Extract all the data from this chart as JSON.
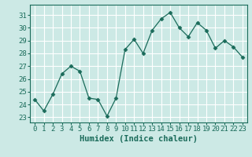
{
  "x": [
    0,
    1,
    2,
    3,
    4,
    5,
    6,
    7,
    8,
    9,
    10,
    11,
    12,
    13,
    14,
    15,
    16,
    17,
    18,
    19,
    20,
    21,
    22,
    23
  ],
  "y": [
    24.4,
    23.5,
    24.8,
    26.4,
    27.0,
    26.6,
    24.5,
    24.4,
    23.1,
    24.5,
    28.3,
    29.1,
    28.0,
    29.8,
    30.7,
    31.2,
    30.0,
    29.3,
    30.4,
    29.8,
    28.4,
    29.0,
    28.5,
    27.7
  ],
  "xlabel": "Humidex (Indice chaleur)",
  "ylim": [
    22.6,
    31.8
  ],
  "yticks": [
    23,
    24,
    25,
    26,
    27,
    28,
    29,
    30,
    31
  ],
  "xlim": [
    -0.5,
    23.5
  ],
  "line_color": "#1a6b5a",
  "marker": "D",
  "marker_size": 2.5,
  "bg_color": "#cce9e5",
  "grid_color": "#ffffff",
  "tick_color": "#1a6b5a",
  "label_color": "#1a6b5a",
  "xlabel_fontsize": 7.5,
  "tick_fontsize": 6.5
}
